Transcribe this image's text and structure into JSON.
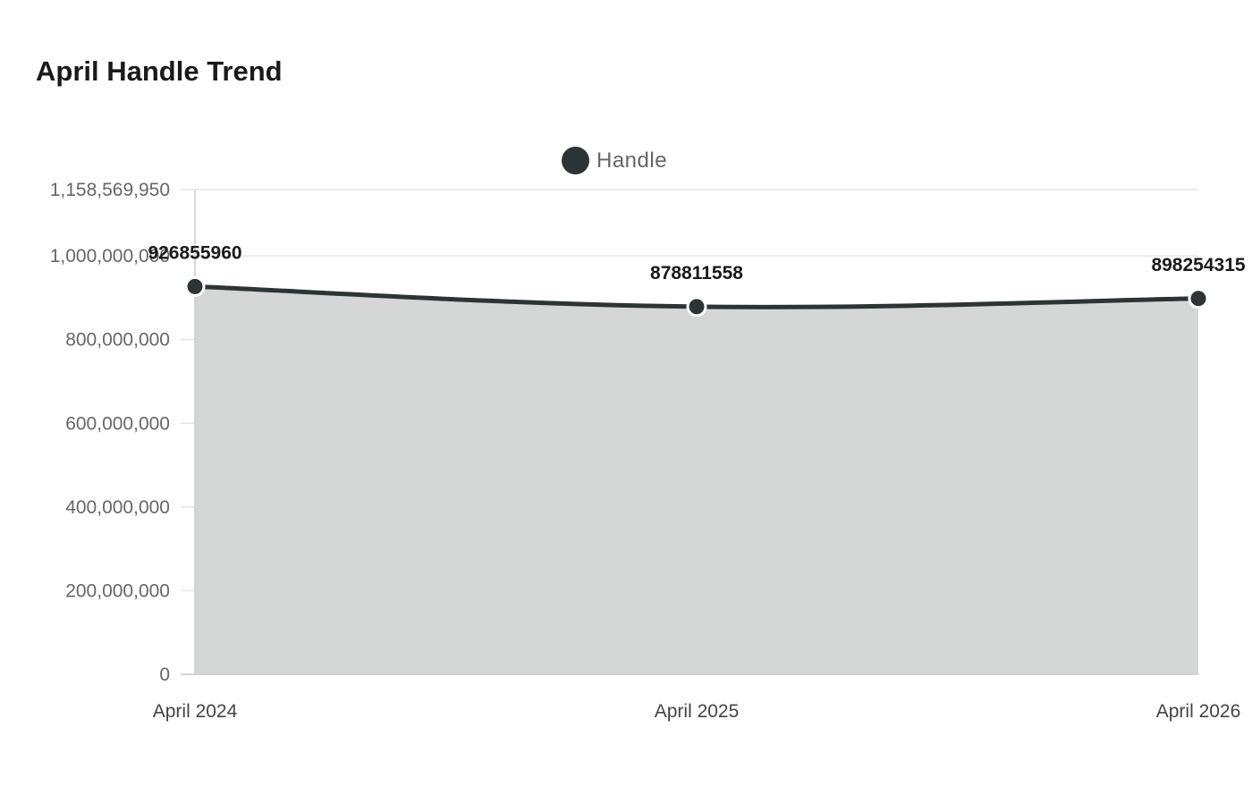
{
  "chart_data": {
    "type": "area",
    "title": "April Handle Trend",
    "categories": [
      "April 2024",
      "April 2025",
      "April 2026"
    ],
    "series": [
      {
        "name": "Handle",
        "values": [
          926855960,
          878811558,
          898254315
        ],
        "color": "#2d3436",
        "fill": "#d5d7d6"
      }
    ],
    "ylim": [
      0,
      1158569950
    ],
    "yticks": [
      0,
      200000000,
      400000000,
      600000000,
      800000000,
      1000000000,
      1158569950
    ],
    "ytick_labels": [
      "0",
      "200,000,000",
      "400,000,000",
      "600,000,000",
      "800,000,000",
      "1,000,000,000",
      "1,158,569,950"
    ],
    "xlabel": "",
    "ylabel": "",
    "grid": true,
    "legend_position": "top-center"
  }
}
